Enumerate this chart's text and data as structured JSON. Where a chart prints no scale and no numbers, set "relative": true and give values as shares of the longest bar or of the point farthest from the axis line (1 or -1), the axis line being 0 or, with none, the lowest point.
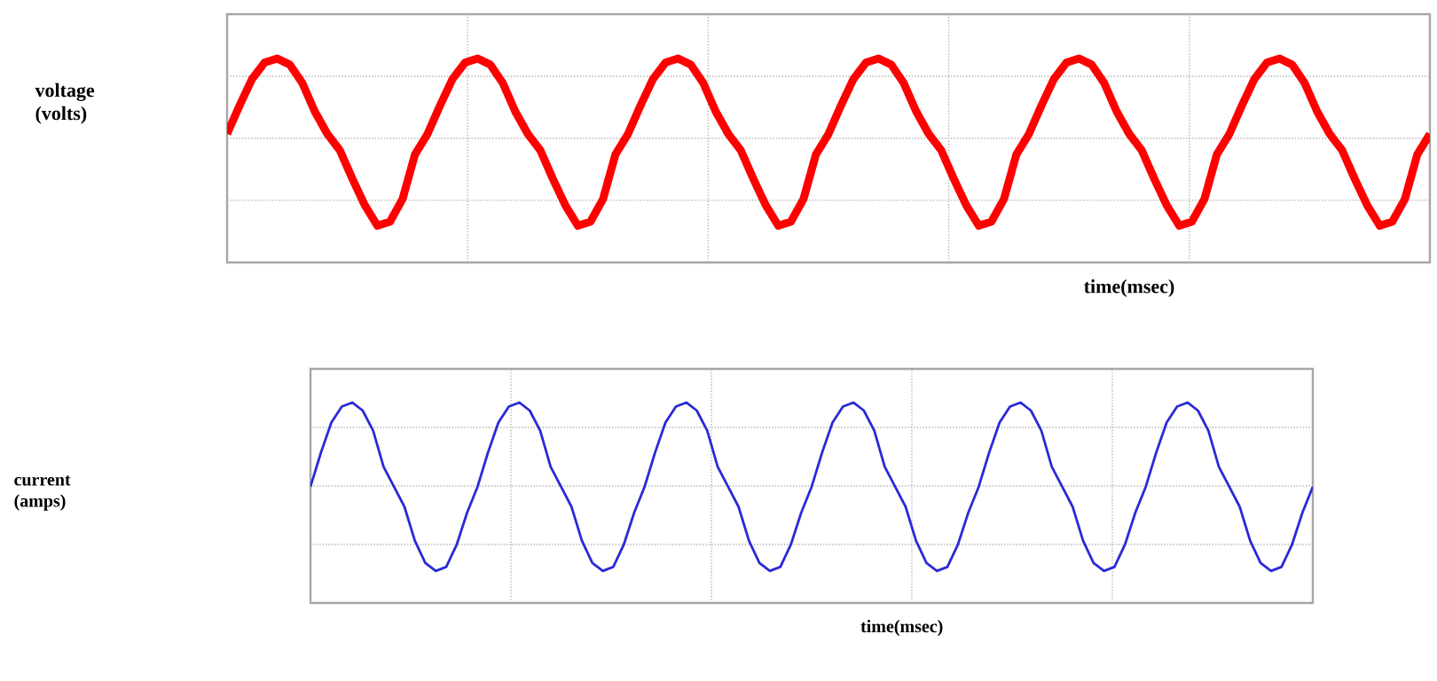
{
  "chart_data": [
    {
      "type": "line",
      "relative": true,
      "ylabel": "voltage (volts)",
      "xlabel": "time(msec)",
      "grid": true,
      "categories": [
        null,
        null,
        null,
        null,
        null,
        null,
        null,
        null,
        null,
        null,
        null,
        null,
        null,
        null,
        null,
        null,
        null,
        null,
        null,
        null,
        null,
        null,
        null,
        null,
        null,
        null,
        null,
        null,
        null,
        null,
        null,
        null,
        null,
        null,
        null,
        null,
        null,
        null,
        null,
        null,
        null,
        null,
        null,
        null,
        null,
        null,
        null,
        null,
        null,
        null,
        null,
        null,
        null,
        null,
        null,
        null,
        null,
        null,
        null,
        null,
        null,
        null,
        null,
        null,
        null,
        null,
        null,
        null,
        null,
        null,
        null,
        null,
        null,
        null,
        null,
        null,
        null,
        null,
        null,
        null,
        null,
        null,
        null,
        null,
        null,
        null,
        null,
        null,
        null,
        null,
        null,
        null,
        null,
        null,
        null,
        null,
        null
      ],
      "series": [
        {
          "color": "#ff0000",
          "values": [
            0.63,
            0.77,
            0.9,
            0.98,
            1,
            0.97,
            0.88,
            0.74,
            0.63,
            0.55,
            0.41,
            0.28,
            0.18,
            0.2,
            0.31,
            0.53,
            0.63,
            0.77,
            0.9,
            0.98,
            1,
            0.97,
            0.88,
            0.74,
            0.63,
            0.55,
            0.41,
            0.28,
            0.18,
            0.2,
            0.31,
            0.53,
            0.63,
            0.77,
            0.9,
            0.98,
            1,
            0.97,
            0.88,
            0.74,
            0.63,
            0.55,
            0.41,
            0.28,
            0.18,
            0.2,
            0.31,
            0.53,
            0.63,
            0.77,
            0.9,
            0.98,
            1,
            0.97,
            0.88,
            0.74,
            0.63,
            0.55,
            0.41,
            0.28,
            0.18,
            0.2,
            0.31,
            0.53,
            0.63,
            0.77,
            0.9,
            0.98,
            1,
            0.97,
            0.88,
            0.74,
            0.63,
            0.55,
            0.41,
            0.28,
            0.18,
            0.2,
            0.31,
            0.53,
            0.63,
            0.77,
            0.9,
            0.98,
            1,
            0.97,
            0.88,
            0.74,
            0.63,
            0.55,
            0.41,
            0.28,
            0.18,
            0.2,
            0.31,
            0.53,
            0.63
          ]
        }
      ]
    },
    {
      "type": "line",
      "relative": true,
      "ylabel": "current (amps)",
      "xlabel": "time(msec)",
      "grid": true,
      "categories": [
        null,
        null,
        null,
        null,
        null,
        null,
        null,
        null,
        null,
        null,
        null,
        null,
        null,
        null,
        null,
        null,
        null,
        null,
        null,
        null,
        null,
        null,
        null,
        null,
        null,
        null,
        null,
        null,
        null,
        null,
        null,
        null,
        null,
        null,
        null,
        null,
        null,
        null,
        null,
        null,
        null,
        null,
        null,
        null,
        null,
        null,
        null,
        null,
        null,
        null,
        null,
        null,
        null,
        null,
        null,
        null,
        null,
        null,
        null,
        null,
        null,
        null,
        null,
        null,
        null,
        null,
        null,
        null,
        null,
        null,
        null,
        null,
        null,
        null,
        null,
        null,
        null,
        null,
        null,
        null,
        null,
        null,
        null,
        null,
        null,
        null,
        null,
        null,
        null,
        null,
        null,
        null,
        null,
        null,
        null,
        null,
        null
      ],
      "series": [
        {
          "color": "#2a2ad8",
          "values": [
            0.58,
            0.75,
            0.9,
            0.98,
            1,
            0.96,
            0.86,
            0.68,
            0.58,
            0.48,
            0.31,
            0.2,
            0.16,
            0.18,
            0.29,
            0.45,
            0.58,
            0.75,
            0.9,
            0.98,
            1,
            0.96,
            0.86,
            0.68,
            0.58,
            0.48,
            0.31,
            0.2,
            0.16,
            0.18,
            0.29,
            0.45,
            0.58,
            0.75,
            0.9,
            0.98,
            1,
            0.96,
            0.86,
            0.68,
            0.58,
            0.48,
            0.31,
            0.2,
            0.16,
            0.18,
            0.29,
            0.45,
            0.58,
            0.75,
            0.9,
            0.98,
            1,
            0.96,
            0.86,
            0.68,
            0.58,
            0.48,
            0.31,
            0.2,
            0.16,
            0.18,
            0.29,
            0.45,
            0.58,
            0.75,
            0.9,
            0.98,
            1,
            0.96,
            0.86,
            0.68,
            0.58,
            0.48,
            0.31,
            0.2,
            0.16,
            0.18,
            0.29,
            0.45,
            0.58,
            0.75,
            0.9,
            0.98,
            1,
            0.96,
            0.86,
            0.68,
            0.58,
            0.48,
            0.31,
            0.2,
            0.16,
            0.18,
            0.29,
            0.45,
            0.58
          ]
        }
      ]
    }
  ]
}
